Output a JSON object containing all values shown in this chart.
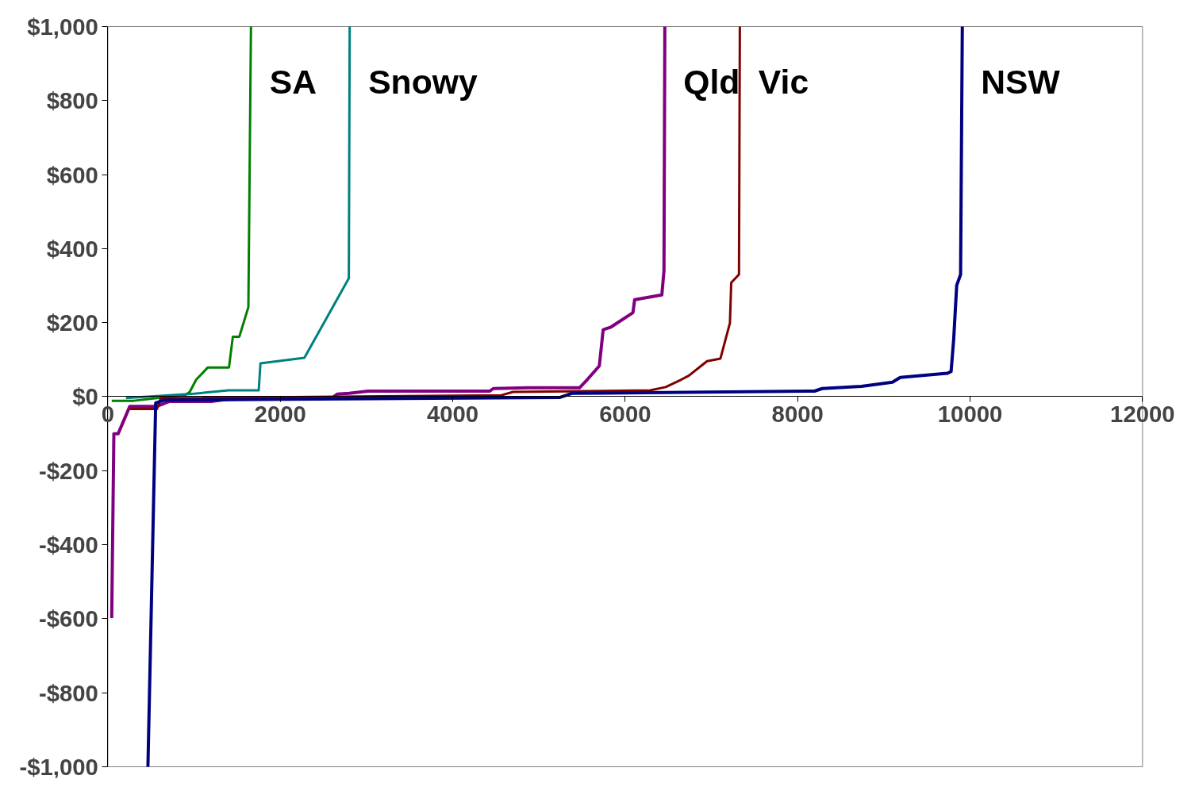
{
  "chart_data": {
    "type": "line",
    "xlim": [
      0,
      12000
    ],
    "ylim": [
      -1000,
      1000
    ],
    "xticks": [
      0,
      2000,
      4000,
      6000,
      8000,
      10000,
      12000
    ],
    "yticks": [
      {
        "value": 1000,
        "label": "$1,000"
      },
      {
        "value": 800,
        "label": "$800"
      },
      {
        "value": 600,
        "label": "$600"
      },
      {
        "value": 400,
        "label": "$400"
      },
      {
        "value": 200,
        "label": "$200"
      },
      {
        "value": 0,
        "label": "$0"
      },
      {
        "value": -200,
        "label": "-$200"
      },
      {
        "value": -400,
        "label": "-$400"
      },
      {
        "value": -600,
        "label": "-$600"
      },
      {
        "value": -800,
        "label": "-$800"
      },
      {
        "value": -1000,
        "label": "-$1,000"
      }
    ],
    "grid": false,
    "marker": "none",
    "line_style": "solid",
    "series": [
      {
        "name": "SA",
        "color": "#008000",
        "x": [
          45,
          300,
          900,
          950,
          1025,
          1160,
          1405,
          1450,
          1525,
          1630,
          1660
        ],
        "values": [
          -11,
          -11,
          5,
          13,
          46,
          79,
          79,
          162,
          162,
          242,
          1000
        ]
      },
      {
        "name": "Snowy",
        "color": "#008080",
        "x": [
          210,
          1000,
          1400,
          1750,
          1770,
          2280,
          2795,
          2805
        ],
        "values": [
          -4,
          8,
          17,
          17,
          90,
          105,
          320,
          1000
        ]
      },
      {
        "name": "Qld",
        "color": "#800080",
        "x": [
          45,
          70,
          120,
          255,
          570,
          710,
          1200,
          1390,
          2610,
          2660,
          2800,
          3020,
          4430,
          4470,
          4880,
          5470,
          5560,
          5700,
          5745,
          5835,
          6090,
          6110,
          6425,
          6450,
          6460
        ],
        "values": [
          -598,
          -100,
          -100,
          -26,
          -26,
          -13,
          -13,
          -7,
          -2,
          7,
          9,
          15,
          15,
          22,
          24,
          24,
          46,
          83,
          181,
          188,
          227,
          262,
          275,
          340,
          1000
        ]
      },
      {
        "name": "Vic",
        "color": "#800000",
        "x": [
          255,
          570,
          615,
          4565,
          4700,
          6290,
          6470,
          6650,
          6740,
          6880,
          6950,
          7105,
          7215,
          7230,
          7320,
          7330
        ],
        "values": [
          -33,
          -33,
          -4,
          4,
          13,
          17,
          26,
          46,
          57,
          83,
          96,
          103,
          199,
          308,
          330,
          1000
        ]
      },
      {
        "name": "NSW",
        "color": "#000080",
        "x": [
          465,
          555,
          660,
          5245,
          5380,
          8195,
          8285,
          8740,
          9100,
          9190,
          9735,
          9780,
          9810,
          9845,
          9890,
          9910
        ],
        "values": [
          -1000,
          -17,
          -9,
          -2,
          9,
          15,
          22,
          28,
          39,
          52,
          63,
          68,
          155,
          301,
          330,
          1000
        ]
      }
    ]
  }
}
